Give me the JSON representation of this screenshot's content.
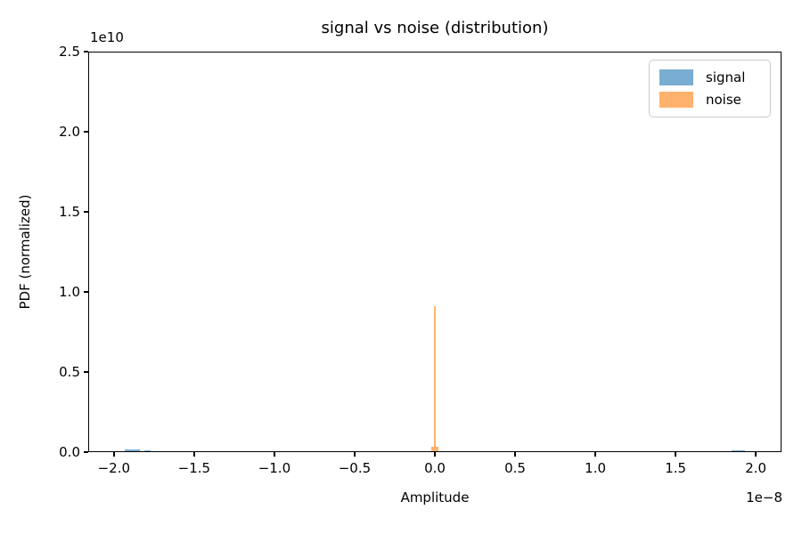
{
  "figure": {
    "title": "signal vs noise (distribution)",
    "background_color": "#ffffff",
    "spine_color": "#000000",
    "text_color": "#000000"
  },
  "axes": {
    "xlabel": "Amplitude",
    "ylabel": "PDF (normalized)",
    "x_offset_label": "1e−8",
    "y_offset_label": "1e10"
  },
  "legend": {
    "location": "upper right",
    "items": [
      {
        "label": "signal",
        "color": "#79add2"
      },
      {
        "label": "noise",
        "color": "#ffb26e"
      }
    ]
  },
  "chart_data": {
    "type": "bar",
    "subtype": "histogram-pdf",
    "title": "signal vs noise (distribution)",
    "xlabel": "Amplitude",
    "ylabel": "PDF (normalized)",
    "grid": false,
    "legend_position": "upper right",
    "xlim": [
      -2.16e-08,
      2.16e-08
    ],
    "ylim": [
      0,
      25000000000.0
    ],
    "x_offset_factor": "1e−8",
    "y_offset_factor": "1e10",
    "xtick_values": [
      -2e-08,
      -1.5e-08,
      -1e-08,
      -5e-09,
      0.0,
      5e-09,
      1e-08,
      1.5e-08,
      2e-08
    ],
    "xtick_labels": [
      "−2.0",
      "−1.5",
      "−1.0",
      "−0.5",
      "0.0",
      "0.5",
      "1.0",
      "1.5",
      "2.0"
    ],
    "ytick_values": [
      0,
      5000000000.0,
      10000000000.0,
      15000000000.0,
      20000000000.0,
      25000000000.0
    ],
    "ytick_labels": [
      "0.0",
      "0.5",
      "1.0",
      "1.5",
      "2.0",
      "2.5"
    ],
    "series": [
      {
        "name": "signal",
        "color": "#79add2",
        "bars": [
          {
            "x_from": -1.93e-08,
            "x_to": -1.84e-08,
            "density": 120000000.0
          },
          {
            "x_from": -1.81e-08,
            "x_to": -1.77e-08,
            "density": 90000000.0
          },
          {
            "x_from": 1.85e-08,
            "x_to": 1.93e-08,
            "density": 100000000.0
          }
        ]
      },
      {
        "name": "noise",
        "color": "#ffb26e",
        "bars": [
          {
            "x_from": -2.2e-10,
            "x_to": 2.2e-10,
            "density": 300000000.0
          },
          {
            "x_from": -8e-11,
            "x_to": 8e-11,
            "density": 6400000000.0
          },
          {
            "x_from": -4e-11,
            "x_to": 4e-11,
            "density": 9100000000.0
          }
        ]
      }
    ]
  }
}
